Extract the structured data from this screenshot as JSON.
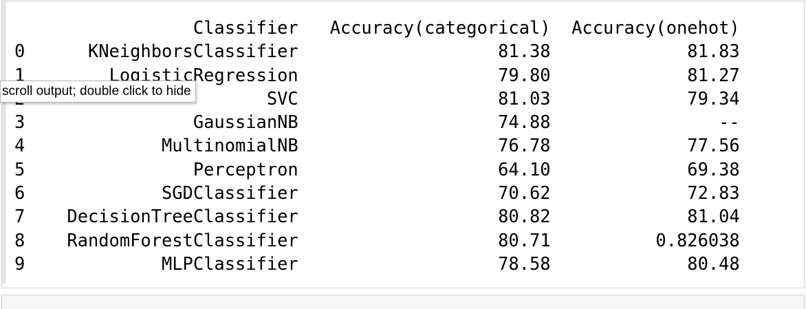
{
  "output": {
    "tooltip": "scroll output; double click to hide",
    "dataframe": {
      "columns": [
        "Classifier",
        "Accuracy(categorical)",
        "Accuracy(onehot)"
      ],
      "rows": [
        {
          "index": "0",
          "classifier": "KNeighborsClassifier",
          "categorical": "81.38",
          "onehot": "81.83"
        },
        {
          "index": "1",
          "classifier": "LogisticRegression",
          "categorical": "79.80",
          "onehot": "81.27"
        },
        {
          "index": "2",
          "classifier": "SVC",
          "categorical": "81.03",
          "onehot": "79.34"
        },
        {
          "index": "3",
          "classifier": "GaussianNB",
          "categorical": "74.88",
          "onehot": "--"
        },
        {
          "index": "4",
          "classifier": "MultinomialNB",
          "categorical": "76.78",
          "onehot": "77.56"
        },
        {
          "index": "5",
          "classifier": "Perceptron",
          "categorical": "64.10",
          "onehot": "69.38"
        },
        {
          "index": "6",
          "classifier": "SGDClassifier",
          "categorical": "70.62",
          "onehot": "72.83"
        },
        {
          "index": "7",
          "classifier": "DecisionTreeClassifier",
          "categorical": "80.82",
          "onehot": "81.04"
        },
        {
          "index": "8",
          "classifier": "RandomForestClassifier",
          "categorical": "80.71",
          "onehot": "0.826038"
        },
        {
          "index": "9",
          "classifier": "MLPClassifier",
          "categorical": "78.58",
          "onehot": "80.48"
        }
      ]
    }
  }
}
